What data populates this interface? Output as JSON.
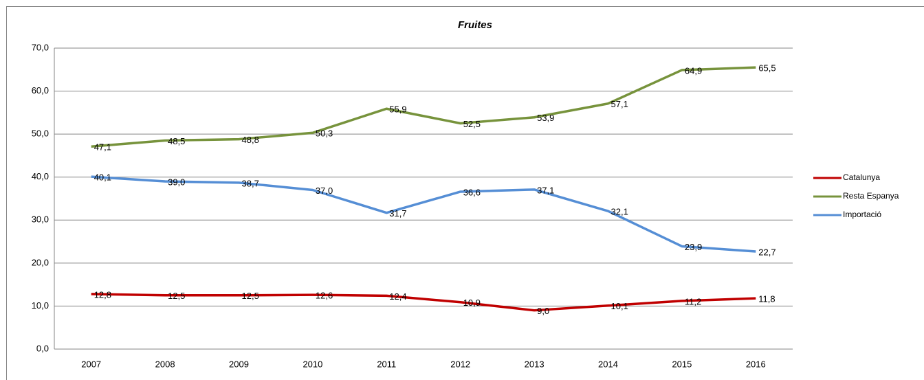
{
  "chart_data": {
    "type": "line",
    "title": "Fruites",
    "categories": [
      "2007",
      "2008",
      "2009",
      "2010",
      "2011",
      "2012",
      "2013",
      "2014",
      "2015",
      "2016"
    ],
    "series": [
      {
        "name": "Catalunya",
        "color": "#c00000",
        "values": [
          12.8,
          12.5,
          12.5,
          12.6,
          12.4,
          10.9,
          9.0,
          10.1,
          11.2,
          11.8
        ],
        "value_labels": [
          "12,8",
          "12,5",
          "12,5",
          "12,6",
          "12,4",
          "10,9",
          "9,0",
          "10,1",
          "11,2",
          "11,8"
        ]
      },
      {
        "name": "Resta Espanya",
        "color": "#77933c",
        "values": [
          47.1,
          48.5,
          48.8,
          50.3,
          55.9,
          52.5,
          53.9,
          57.1,
          64.9,
          65.5
        ],
        "value_labels": [
          "47,1",
          "48,5",
          "48,8",
          "50,3",
          "55,9",
          "52,5",
          "53,9",
          "57,1",
          "64,9",
          "65,5"
        ]
      },
      {
        "name": "Importació",
        "color": "#558ed5",
        "values": [
          40.1,
          39.0,
          38.7,
          37.0,
          31.7,
          36.6,
          37.1,
          32.1,
          23.9,
          22.7
        ],
        "value_labels": [
          "40,1",
          "39,0",
          "38,7",
          "37,0",
          "31,7",
          "36,6",
          "37,1",
          "32,1",
          "23,9",
          "22,7"
        ]
      }
    ],
    "ylim": [
      0,
      70
    ],
    "yticks": [
      {
        "value": 0,
        "label": "0,0"
      },
      {
        "value": 10,
        "label": "10,0"
      },
      {
        "value": 20,
        "label": "20,0"
      },
      {
        "value": 30,
        "label": "30,0"
      },
      {
        "value": 40,
        "label": "40,0"
      },
      {
        "value": 50,
        "label": "50,0"
      },
      {
        "value": 60,
        "label": "60,0"
      },
      {
        "value": 70,
        "label": "70,0"
      }
    ],
    "grid": true,
    "legend": "right"
  }
}
